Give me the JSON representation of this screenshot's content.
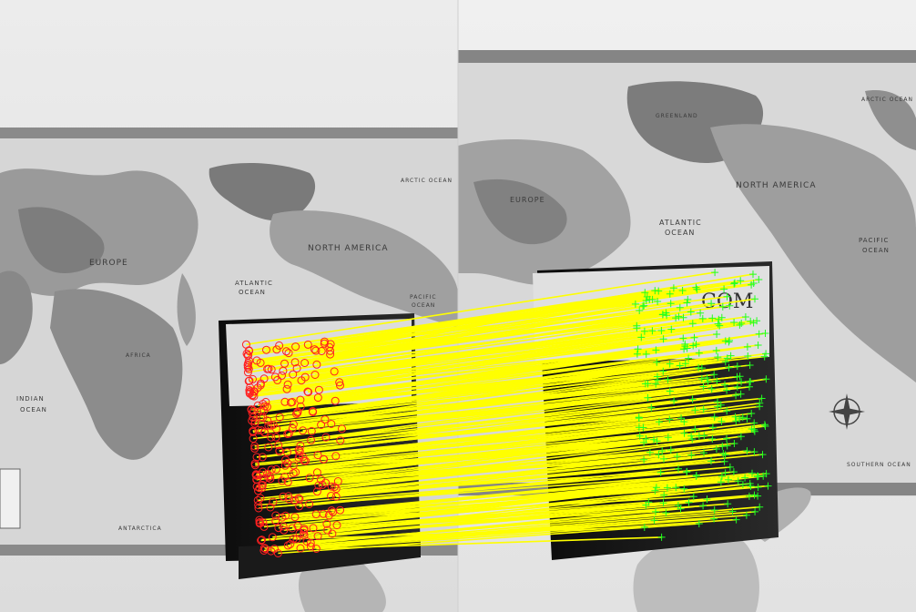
{
  "image": {
    "kind": "feature-matching-visualization",
    "panels": [
      {
        "id": "left",
        "content": "world map poster with book held in front"
      },
      {
        "id": "right",
        "content": "world map poster with book held in front, different viewpoint"
      }
    ]
  },
  "colors": {
    "match_line": "#ffff00",
    "left_keypoint": "#ff2020",
    "right_keypoint": "#20ff20",
    "wall": "#e8e8e8",
    "poster_bg": "#d8d8d8",
    "book_cover": "#111111"
  },
  "markers": {
    "left_keypoint_shape": "circle",
    "right_keypoint_shape": "plus"
  },
  "map_text_left": {
    "europe": "EUROPE",
    "atlantic_1": "ATLANTIC",
    "atlantic_2": "OCEAN",
    "north_america": "NORTH AMERICA",
    "indian_1": "INDIAN",
    "indian_2": "OCEAN",
    "arctic": "ARCTIC OCEAN",
    "pacific_1": "PACIFIC",
    "pacific_2": "OCEAN",
    "antarctic": "ANTARCTICA",
    "africa": "AFRICA"
  },
  "map_text_right": {
    "arctic": "ARCTIC OCEAN",
    "greenland": "GREENLAND",
    "atlantic_1": "ATLANTIC",
    "atlantic_2": "OCEAN",
    "north_america": "NORTH AMERICA",
    "pacific_1": "PACIFIC",
    "pacific_2": "OCEAN",
    "southern": "SOUTHERN OCEAN",
    "europe": "EUROPE"
  },
  "book_title_right": "COM"
}
